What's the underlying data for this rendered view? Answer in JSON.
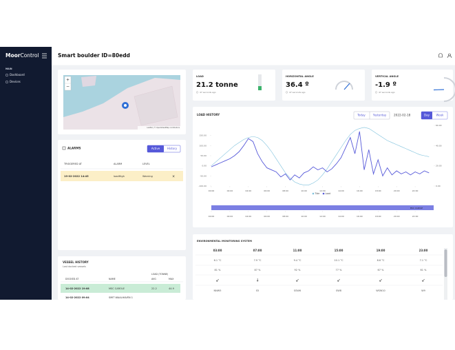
{
  "sidebar": {
    "logo_bold": "Moor",
    "logo_light": "Control",
    "section": "MAIN",
    "menu": [
      "Dashboard",
      "Devices"
    ]
  },
  "header": {
    "title": "Smart boulder ID=80edd"
  },
  "map": {
    "zoom_in": "+",
    "zoom_out": "−",
    "attribution": "Leaflet | © OpenStreetMap contributors"
  },
  "alarms": {
    "title": "ALARMS",
    "tabs": [
      "Active",
      "History"
    ],
    "columns": [
      "TRIGGERED AT",
      "ALARM",
      "LEVEL"
    ],
    "rows": [
      [
        "19-02-2022 14:45",
        "loadHigh",
        "Warning",
        "×"
      ]
    ]
  },
  "vessel_history": {
    "title": "VESSEL HISTORY",
    "subtitle": "Last docked vessels",
    "group_header": "LOAD (TONNE)",
    "columns": [
      "DOCKED AT",
      "NAME",
      "AVG",
      "MAX"
    ],
    "rows": [
      [
        "14-02-2022 19:08",
        "MSC CAROLE",
        "22.2",
        "44.9"
      ],
      [
        "14-02-2022 09:04",
        "SMIT WAALHAVEN 1"
      ]
    ]
  },
  "metrics": [
    {
      "title": "LOAD",
      "value": "21.2 tonne",
      "updated": "47 seconds ago"
    },
    {
      "title": "HORIZONTAL ANGLE",
      "value": "36.4 º",
      "updated": "47 seconds ago"
    },
    {
      "title": "VERTICAL ANGLE",
      "value": "-1.9 º",
      "updated": "47 seconds ago"
    }
  ],
  "load_history": {
    "buttons": [
      "Today",
      "Yesterday"
    ],
    "date": "2022-02-18",
    "ranges": [
      "Day",
      "Week"
    ]
  },
  "chart_data": {
    "type": "line",
    "title": "LOAD HISTORY",
    "x": [
      0,
      0.5,
      1,
      1.5,
      2,
      2.5,
      3,
      3.5,
      4,
      4.5,
      5,
      5.5,
      6,
      6.5,
      7,
      7.5,
      8,
      8.5,
      9,
      9.5,
      10,
      10.5,
      11,
      11.5,
      12,
      12.5,
      13,
      13.5,
      14,
      14.5,
      15,
      15.5,
      16,
      16.5,
      17,
      17.5,
      18,
      18.5,
      19,
      19.5,
      20,
      20.5,
      21,
      21.5,
      22,
      22.5,
      23,
      23.5
    ],
    "series": [
      {
        "name": "Tide",
        "color": "#7cc0dc",
        "axis": "y2",
        "values": [
          20,
          24,
          28,
          32,
          36,
          40,
          43,
          46,
          48,
          49,
          48,
          45,
          40,
          34,
          27,
          20,
          13,
          8,
          4,
          2,
          1,
          1,
          3,
          6,
          11,
          17,
          24,
          31,
          38,
          45,
          51,
          55,
          57,
          58,
          57,
          54,
          51,
          48,
          45,
          43,
          41,
          39,
          37,
          35,
          33,
          31,
          30,
          29
        ]
      },
      {
        "name": "Load",
        "color": "#5558d9",
        "values": [
          -5,
          5,
          15,
          25,
          35,
          50,
          70,
          100,
          135,
          120,
          60,
          20,
          -10,
          -20,
          -30,
          -55,
          -40,
          -70,
          -45,
          -60,
          -35,
          -25,
          -5,
          -20,
          -10,
          -30,
          -15,
          10,
          40,
          90,
          140,
          60,
          170,
          -20,
          80,
          -40,
          30,
          -50,
          -10,
          -45,
          -25,
          -40,
          -30,
          -45,
          -30,
          -40,
          -25,
          -35
        ]
      }
    ],
    "xlim": [
      0,
      24
    ],
    "xticks": [
      {
        "value": 0,
        "label": "00:00"
      },
      {
        "value": 2,
        "label": "02:00"
      },
      {
        "value": 4,
        "label": "04:00"
      },
      {
        "value": 6,
        "label": "06:00"
      },
      {
        "value": 8,
        "label": "08:00"
      },
      {
        "value": 10,
        "label": "10:00"
      },
      {
        "value": 12,
        "label": "12:00"
      },
      {
        "value": 14,
        "label": "14:00"
      },
      {
        "value": 16,
        "label": "16:00"
      },
      {
        "value": 18,
        "label": "18:00"
      },
      {
        "value": 20,
        "label": "20:00"
      },
      {
        "value": 22,
        "label": "22:00"
      }
    ],
    "ylim": [
      -100,
      200
    ],
    "yticks": [
      {
        "value": -100,
        "label": "-100.00"
      },
      {
        "value": -50,
        "label": "-50.00"
      },
      {
        "value": 0,
        "label": "0.00"
      },
      {
        "value": 50,
        "label": "50.00"
      },
      {
        "value": 100,
        "label": "100.00"
      },
      {
        "value": 150,
        "label": "150.00"
      }
    ],
    "y2lim": [
      0,
      60
    ],
    "y2ticks": [
      {
        "value": 0,
        "label": "0.00"
      },
      {
        "value": 20,
        "label": "20.00"
      },
      {
        "value": 40,
        "label": "40.00"
      },
      {
        "value": 60,
        "label": "60.00"
      }
    ],
    "timeline": {
      "label": "MSC CAROLE",
      "color": "#7b7fe3",
      "start": 0,
      "end": 24
    }
  },
  "environment": {
    "title": "ENVIRONMENTAL MONITORING SYSTEM",
    "columns": [
      {
        "time": "03:00",
        "temperature": "6.1 °C",
        "humidity": "81 %",
        "direction": "↙",
        "wind": "NNW5"
      },
      {
        "time": "07:00",
        "temperature": "7.9 °C",
        "humidity": "87 %",
        "direction": "↓",
        "wind": "S5"
      },
      {
        "time": "11:00",
        "temperature": "9.4 °C",
        "humidity": "92 %",
        "direction": "↙",
        "wind": "SSW6"
      },
      {
        "time": "15:00",
        "temperature": "10.1 °C",
        "humidity": "77 %",
        "direction": "↙",
        "wind": "SW8"
      },
      {
        "time": "19:00",
        "temperature": "8.6 °C",
        "humidity": "67 %",
        "direction": "↙",
        "wind": "WSW10"
      },
      {
        "time": "23:00",
        "temperature": "7.1 °C",
        "humidity": "61 %",
        "direction": "↙",
        "wind": "W9"
      }
    ]
  }
}
